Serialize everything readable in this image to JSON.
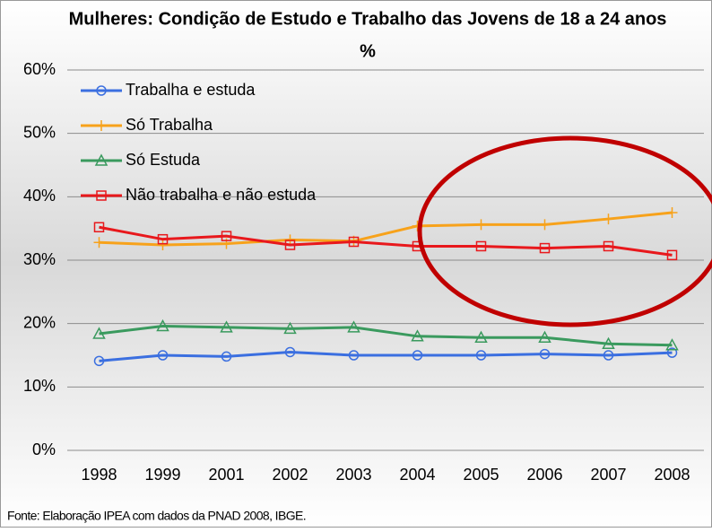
{
  "chart_data": {
    "type": "line",
    "title": "Mulheres: Condição de Estudo e Trabalho das Jovens de 18 a 24 anos",
    "subtitle": "%",
    "footnote": "Fonte: Elaboração IPEA com dados da PNAD 2008, IBGE.",
    "categories": [
      "1998",
      "1999",
      "2001",
      "2002",
      "2003",
      "2004",
      "2005",
      "2006",
      "2007",
      "2008"
    ],
    "series": [
      {
        "name": "Trabalha e estuda",
        "color": "#3b6fe0",
        "marker": "circle",
        "values": [
          14.1,
          15.0,
          14.8,
          15.5,
          15.0,
          15.0,
          15.0,
          15.2,
          15.0,
          15.4
        ]
      },
      {
        "name": "Só Trabalha",
        "color": "#f7a21b",
        "marker": "plus",
        "values": [
          32.8,
          32.4,
          32.6,
          33.2,
          33.0,
          35.4,
          35.6,
          35.6,
          36.5,
          37.5
        ]
      },
      {
        "name": "Só Estuda",
        "color": "#3a9a5e",
        "marker": "triangle",
        "values": [
          18.4,
          19.6,
          19.4,
          19.2,
          19.4,
          18.0,
          17.8,
          17.8,
          16.8,
          16.6
        ]
      },
      {
        "name": "Não trabalha e não estuda",
        "color": "#e8181c",
        "marker": "square",
        "values": [
          35.2,
          33.3,
          33.8,
          32.4,
          32.9,
          32.2,
          32.2,
          31.9,
          32.2,
          30.8
        ]
      }
    ],
    "ylim": [
      0,
      60
    ],
    "yticks": [
      {
        "value": 0,
        "label": "0%"
      },
      {
        "value": 10,
        "label": "10%"
      },
      {
        "value": 20,
        "label": "20%"
      },
      {
        "value": 30,
        "label": "30%"
      },
      {
        "value": 40,
        "label": "40%"
      },
      {
        "value": 50,
        "label": "50%"
      },
      {
        "value": 60,
        "label": "60%"
      }
    ],
    "grid": true,
    "legend": "top-left"
  }
}
